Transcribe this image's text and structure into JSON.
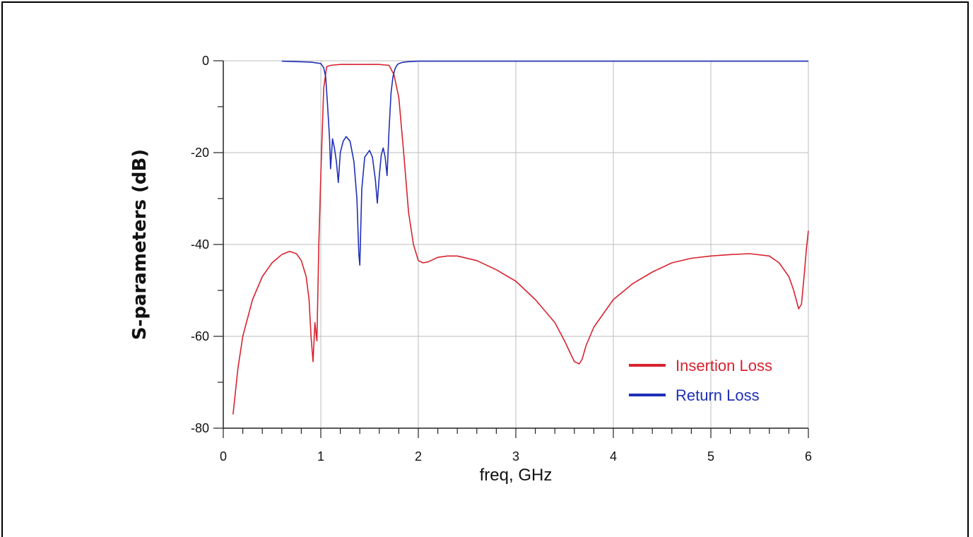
{
  "chart_data": {
    "type": "line",
    "title": "",
    "xlabel": "freq, GHz",
    "ylabel": "S-parameters (dB)",
    "xlim": [
      0,
      6
    ],
    "ylim": [
      -80,
      0
    ],
    "x_ticks": [
      0,
      1,
      2,
      3,
      4,
      5,
      6
    ],
    "x_tick_labels": [
      "0",
      "1",
      "2",
      "3",
      "4",
      "5",
      "6"
    ],
    "y_ticks": [
      0,
      -20,
      -40,
      -60,
      -80
    ],
    "y_tick_labels": [
      "0",
      "-20",
      "-40",
      "-60",
      "-80"
    ],
    "grid": true,
    "legend_position": "bottom-right",
    "series": [
      {
        "name": "Insertion Loss",
        "color": "#d8232f",
        "x": [
          0.1,
          0.15,
          0.2,
          0.3,
          0.4,
          0.5,
          0.6,
          0.68,
          0.75,
          0.8,
          0.85,
          0.88,
          0.9,
          0.92,
          0.94,
          0.96,
          0.98,
          1.0,
          1.03,
          1.06,
          1.1,
          1.2,
          1.3,
          1.4,
          1.5,
          1.6,
          1.7,
          1.75,
          1.8,
          1.85,
          1.9,
          1.95,
          2.0,
          2.05,
          2.1,
          2.2,
          2.3,
          2.4,
          2.6,
          2.8,
          3.0,
          3.2,
          3.4,
          3.5,
          3.6,
          3.65,
          3.68,
          3.72,
          3.8,
          3.9,
          4.0,
          4.2,
          4.4,
          4.6,
          4.8,
          5.0,
          5.2,
          5.4,
          5.6,
          5.7,
          5.8,
          5.85,
          5.9,
          5.93,
          5.96,
          5.98,
          6.0
        ],
        "y": [
          -77,
          -67,
          -60,
          -52,
          -47,
          -44,
          -42.2,
          -41.5,
          -42,
          -43.5,
          -47,
          -52,
          -60,
          -65.5,
          -57,
          -61,
          -40,
          -25,
          -6,
          -1.3,
          -1,
          -0.8,
          -0.8,
          -0.8,
          -0.8,
          -0.8,
          -1,
          -3,
          -8,
          -20,
          -33,
          -40,
          -43.5,
          -44,
          -43.8,
          -42.8,
          -42.5,
          -42.5,
          -43.5,
          -45.5,
          -48,
          -52,
          -57,
          -61,
          -65.5,
          -66,
          -65,
          -62,
          -58,
          -55,
          -52,
          -48.5,
          -46,
          -44,
          -43,
          -42.5,
          -42.2,
          -42,
          -42.5,
          -44,
          -47,
          -50,
          -54,
          -53,
          -46,
          -41,
          -37
        ]
      },
      {
        "name": "Return Loss",
        "color": "#1f2fb8",
        "x": [
          0.6,
          0.9,
          1.0,
          1.03,
          1.05,
          1.07,
          1.09,
          1.1,
          1.12,
          1.14,
          1.16,
          1.18,
          1.2,
          1.23,
          1.26,
          1.3,
          1.34,
          1.37,
          1.39,
          1.4,
          1.42,
          1.45,
          1.5,
          1.53,
          1.56,
          1.58,
          1.6,
          1.62,
          1.64,
          1.66,
          1.68,
          1.7,
          1.72,
          1.74,
          1.76,
          1.78,
          1.8,
          1.85,
          1.9,
          2.0,
          3.0,
          4.0,
          5.0,
          6.0
        ],
        "y": [
          -0.1,
          -0.3,
          -0.6,
          -1.5,
          -3.5,
          -10,
          -17,
          -23.5,
          -17,
          -19,
          -22,
          -26.5,
          -20,
          -17.5,
          -16.5,
          -17.5,
          -22,
          -30,
          -42,
          -44.5,
          -28,
          -21,
          -19.5,
          -21,
          -26,
          -31,
          -25,
          -20.5,
          -19,
          -21,
          -25,
          -15,
          -7,
          -3.5,
          -1.8,
          -1,
          -0.6,
          -0.3,
          -0.2,
          -0.1,
          -0.1,
          -0.1,
          -0.1,
          -0.1
        ]
      }
    ]
  }
}
